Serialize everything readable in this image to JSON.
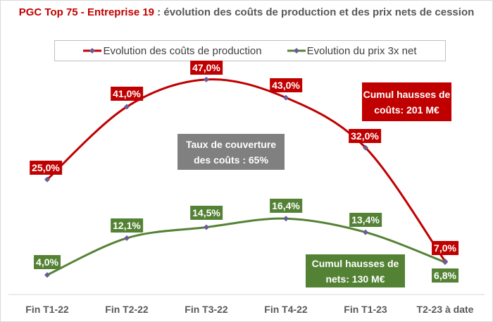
{
  "chart_data": {
    "type": "line",
    "title_highlight": "PGC Top 75 - Entreprise 19",
    "title_rest": " : évolution des coûts de production et des prix nets de cession",
    "categories": [
      "Fin T1-22",
      "Fin T2-22",
      "Fin T3-22",
      "Fin T4-22",
      "Fin T1-23",
      "T2-23 à date"
    ],
    "series": [
      {
        "name": "Evolution des coûts de production",
        "values": [
          25.0,
          41.0,
          47.0,
          43.0,
          32.0,
          7.0
        ],
        "labels": [
          "25,0%",
          "41,0%",
          "47,0%",
          "43,0%",
          "32,0%",
          "7,0%"
        ],
        "color": "#c00000"
      },
      {
        "name": "Evolution du prix 3x net",
        "values": [
          4.0,
          12.1,
          14.5,
          16.4,
          13.4,
          6.8
        ],
        "labels": [
          "4,0%",
          "12,1%",
          "14,5%",
          "16,4%",
          "13,4%",
          "6,8%"
        ],
        "color": "#548235"
      }
    ],
    "marker_color": "#6b5b95",
    "ylim": [
      0,
      50
    ],
    "grid": false,
    "legend_position": "top",
    "annotations": {
      "cost": "Cumul hausses de coûts: 201 M€",
      "coverage": "Taux de couverture des coûts : 65%",
      "nets": "Cumul hausses de nets: 130 M€"
    }
  }
}
